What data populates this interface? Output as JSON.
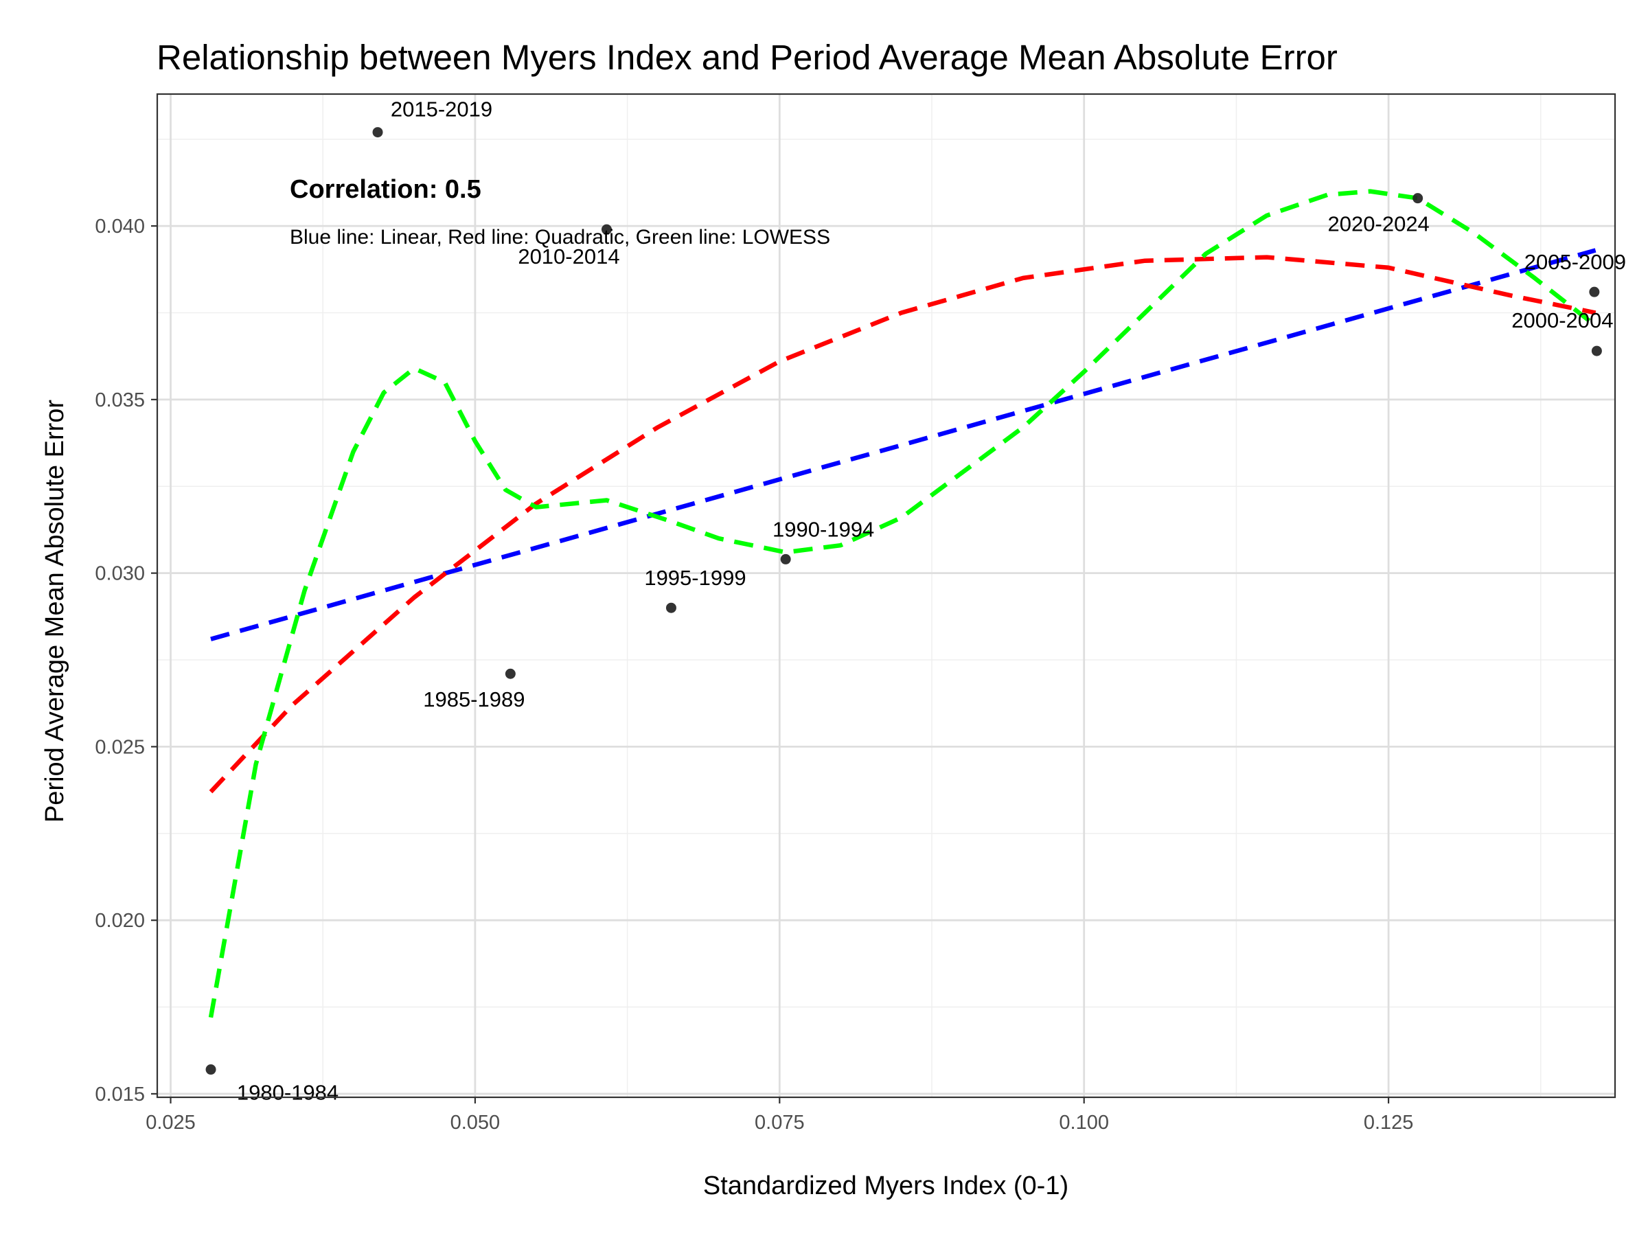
{
  "chart_data": {
    "type": "scatter",
    "title": "Relationship between Myers Index and Period Average Mean Absolute Error",
    "xlabel": "Standardized Myers Index (0-1)",
    "ylabel": "Period Average Mean Absolute Error",
    "xlim": [
      0.0239,
      0.1436
    ],
    "ylim": [
      0.0149,
      0.0438
    ],
    "x_ticks": [
      0.025,
      0.05,
      0.075,
      0.1,
      0.125
    ],
    "x_tick_labels": [
      "0.025",
      "0.050",
      "0.075",
      "0.100",
      "0.125"
    ],
    "y_ticks": [
      0.015,
      0.02,
      0.025,
      0.03,
      0.035,
      0.04
    ],
    "y_tick_labels": [
      "0.015",
      "0.020",
      "0.025",
      "0.030",
      "0.035",
      "0.040"
    ],
    "grid": true,
    "points": [
      {
        "label": "1980-1984",
        "x": 0.0283,
        "y": 0.0157
      },
      {
        "label": "1985-1989",
        "x": 0.0529,
        "y": 0.0271
      },
      {
        "label": "1990-1994",
        "x": 0.0755,
        "y": 0.0304
      },
      {
        "label": "1995-1999",
        "x": 0.0661,
        "y": 0.029
      },
      {
        "label": "2000-2004",
        "x": 0.1421,
        "y": 0.0364
      },
      {
        "label": "2005-2009",
        "x": 0.1419,
        "y": 0.0381
      },
      {
        "label": "2010-2014",
        "x": 0.0608,
        "y": 0.0399
      },
      {
        "label": "2015-2019",
        "x": 0.042,
        "y": 0.0427
      },
      {
        "label": "2020-2024",
        "x": 0.1274,
        "y": 0.0408
      }
    ],
    "lines": [
      {
        "name": "Linear",
        "color": "#0000ff",
        "style": "dashed",
        "x": [
          0.0283,
          0.142
        ],
        "y": [
          0.0281,
          0.0393
        ]
      },
      {
        "name": "Quadratic",
        "color": "#ff0000",
        "style": "dashed",
        "x": [
          0.0283,
          0.035,
          0.045,
          0.055,
          0.065,
          0.075,
          0.085,
          0.095,
          0.105,
          0.115,
          0.125,
          0.135,
          0.142
        ],
        "y": [
          0.0237,
          0.0262,
          0.0293,
          0.032,
          0.0342,
          0.0361,
          0.0375,
          0.0385,
          0.039,
          0.0391,
          0.0388,
          0.038,
          0.0375
        ]
      },
      {
        "name": "LOWESS",
        "color": "#00ff00",
        "style": "dashed",
        "x": [
          0.0283,
          0.032,
          0.036,
          0.04,
          0.0425,
          0.045,
          0.0475,
          0.05,
          0.0525,
          0.055,
          0.0608,
          0.066,
          0.07,
          0.0755,
          0.08,
          0.085,
          0.09,
          0.095,
          0.1,
          0.105,
          0.11,
          0.115,
          0.12,
          0.1235,
          0.1274,
          0.132,
          0.137,
          0.1421
        ],
        "y": [
          0.0172,
          0.0245,
          0.0295,
          0.0335,
          0.0352,
          0.0359,
          0.0355,
          0.0338,
          0.0324,
          0.0319,
          0.0321,
          0.0315,
          0.031,
          0.0306,
          0.0308,
          0.0316,
          0.0329,
          0.0342,
          0.0358,
          0.0375,
          0.0392,
          0.0403,
          0.0409,
          0.041,
          0.0408,
          0.0398,
          0.0385,
          0.0371
        ]
      }
    ],
    "annotations": [
      {
        "text": "Correlation: 0.5",
        "weight": "bold"
      },
      {
        "text": "Blue line: Linear, Red line: Quadratic, Green line: LOWESS",
        "weight": "normal"
      }
    ]
  }
}
